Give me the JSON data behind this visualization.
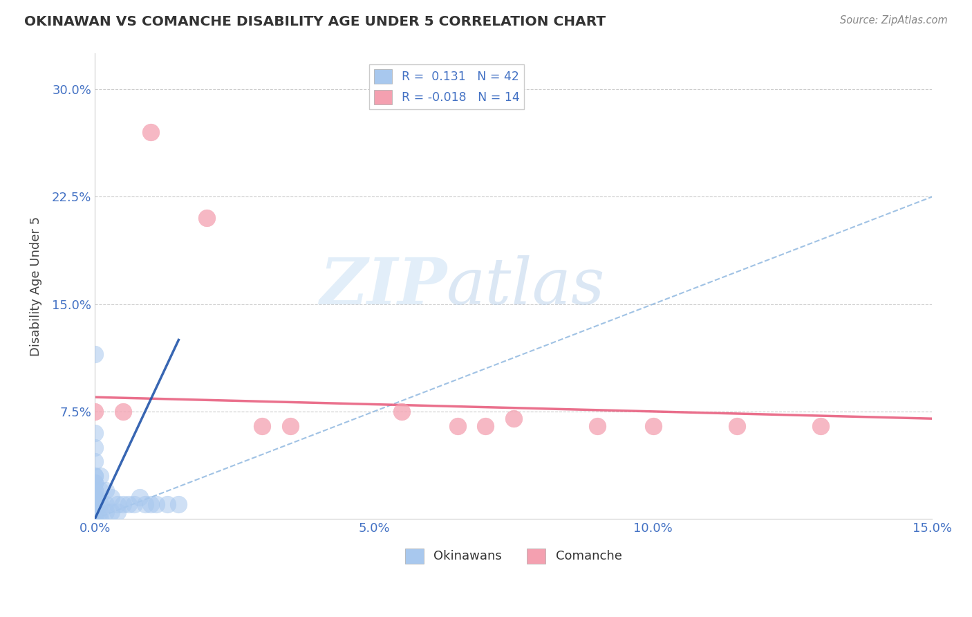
{
  "title": "OKINAWAN VS COMANCHE DISABILITY AGE UNDER 5 CORRELATION CHART",
  "source": "Source: ZipAtlas.com",
  "ylabel": "Disability Age Under 5",
  "xlim": [
    0.0,
    0.15
  ],
  "ylim": [
    0.0,
    0.325
  ],
  "xtick_labels": [
    "0.0%",
    "5.0%",
    "10.0%",
    "15.0%"
  ],
  "xtick_vals": [
    0.0,
    0.05,
    0.1,
    0.15
  ],
  "ytick_labels": [
    "7.5%",
    "15.0%",
    "22.5%",
    "30.0%"
  ],
  "ytick_vals": [
    0.075,
    0.15,
    0.225,
    0.3
  ],
  "okinawan_color": "#A8C8EE",
  "comanche_color": "#F4A0B0",
  "okinawan_trend_dashed_color": "#90B8E0",
  "okinawan_trend_solid_color": "#2255AA",
  "comanche_trend_color": "#E86080",
  "watermark_zip": "ZIP",
  "watermark_atlas": "atlas",
  "background_color": "#ffffff",
  "ok_x": [
    0.0,
    0.0,
    0.0,
    0.0,
    0.0,
    0.0,
    0.0,
    0.0,
    0.0,
    0.0,
    0.0,
    0.0,
    0.0,
    0.0,
    0.0,
    0.0,
    0.0,
    0.0,
    0.0,
    0.0,
    0.001,
    0.001,
    0.001,
    0.001,
    0.001,
    0.002,
    0.002,
    0.002,
    0.003,
    0.003,
    0.004,
    0.004,
    0.005,
    0.006,
    0.007,
    0.008,
    0.009,
    0.01,
    0.011,
    0.013,
    0.015,
    0.0
  ],
  "ok_y": [
    0.0,
    0.0,
    0.0,
    0.0,
    0.0,
    0.005,
    0.005,
    0.01,
    0.01,
    0.015,
    0.015,
    0.02,
    0.02,
    0.025,
    0.025,
    0.03,
    0.03,
    0.04,
    0.05,
    0.06,
    0.0,
    0.005,
    0.01,
    0.02,
    0.03,
    0.005,
    0.01,
    0.02,
    0.005,
    0.015,
    0.005,
    0.01,
    0.01,
    0.01,
    0.01,
    0.015,
    0.01,
    0.01,
    0.01,
    0.01,
    0.01,
    0.115
  ],
  "com_x": [
    0.0,
    0.005,
    0.01,
    0.02,
    0.03,
    0.035,
    0.055,
    0.065,
    0.07,
    0.075,
    0.09,
    0.1,
    0.115,
    0.13
  ],
  "com_y": [
    0.075,
    0.075,
    0.27,
    0.21,
    0.065,
    0.065,
    0.075,
    0.065,
    0.065,
    0.07,
    0.065,
    0.065,
    0.065,
    0.065
  ],
  "dashed_line_x": [
    0.0,
    0.15
  ],
  "dashed_line_y": [
    0.0,
    0.225
  ],
  "comanche_line_x": [
    0.0,
    0.15
  ],
  "comanche_line_y_start": 0.085,
  "comanche_line_y_end": 0.07,
  "solid_ok_line_x": [
    0.0,
    0.015
  ],
  "solid_ok_line_y": [
    0.0,
    0.125
  ]
}
